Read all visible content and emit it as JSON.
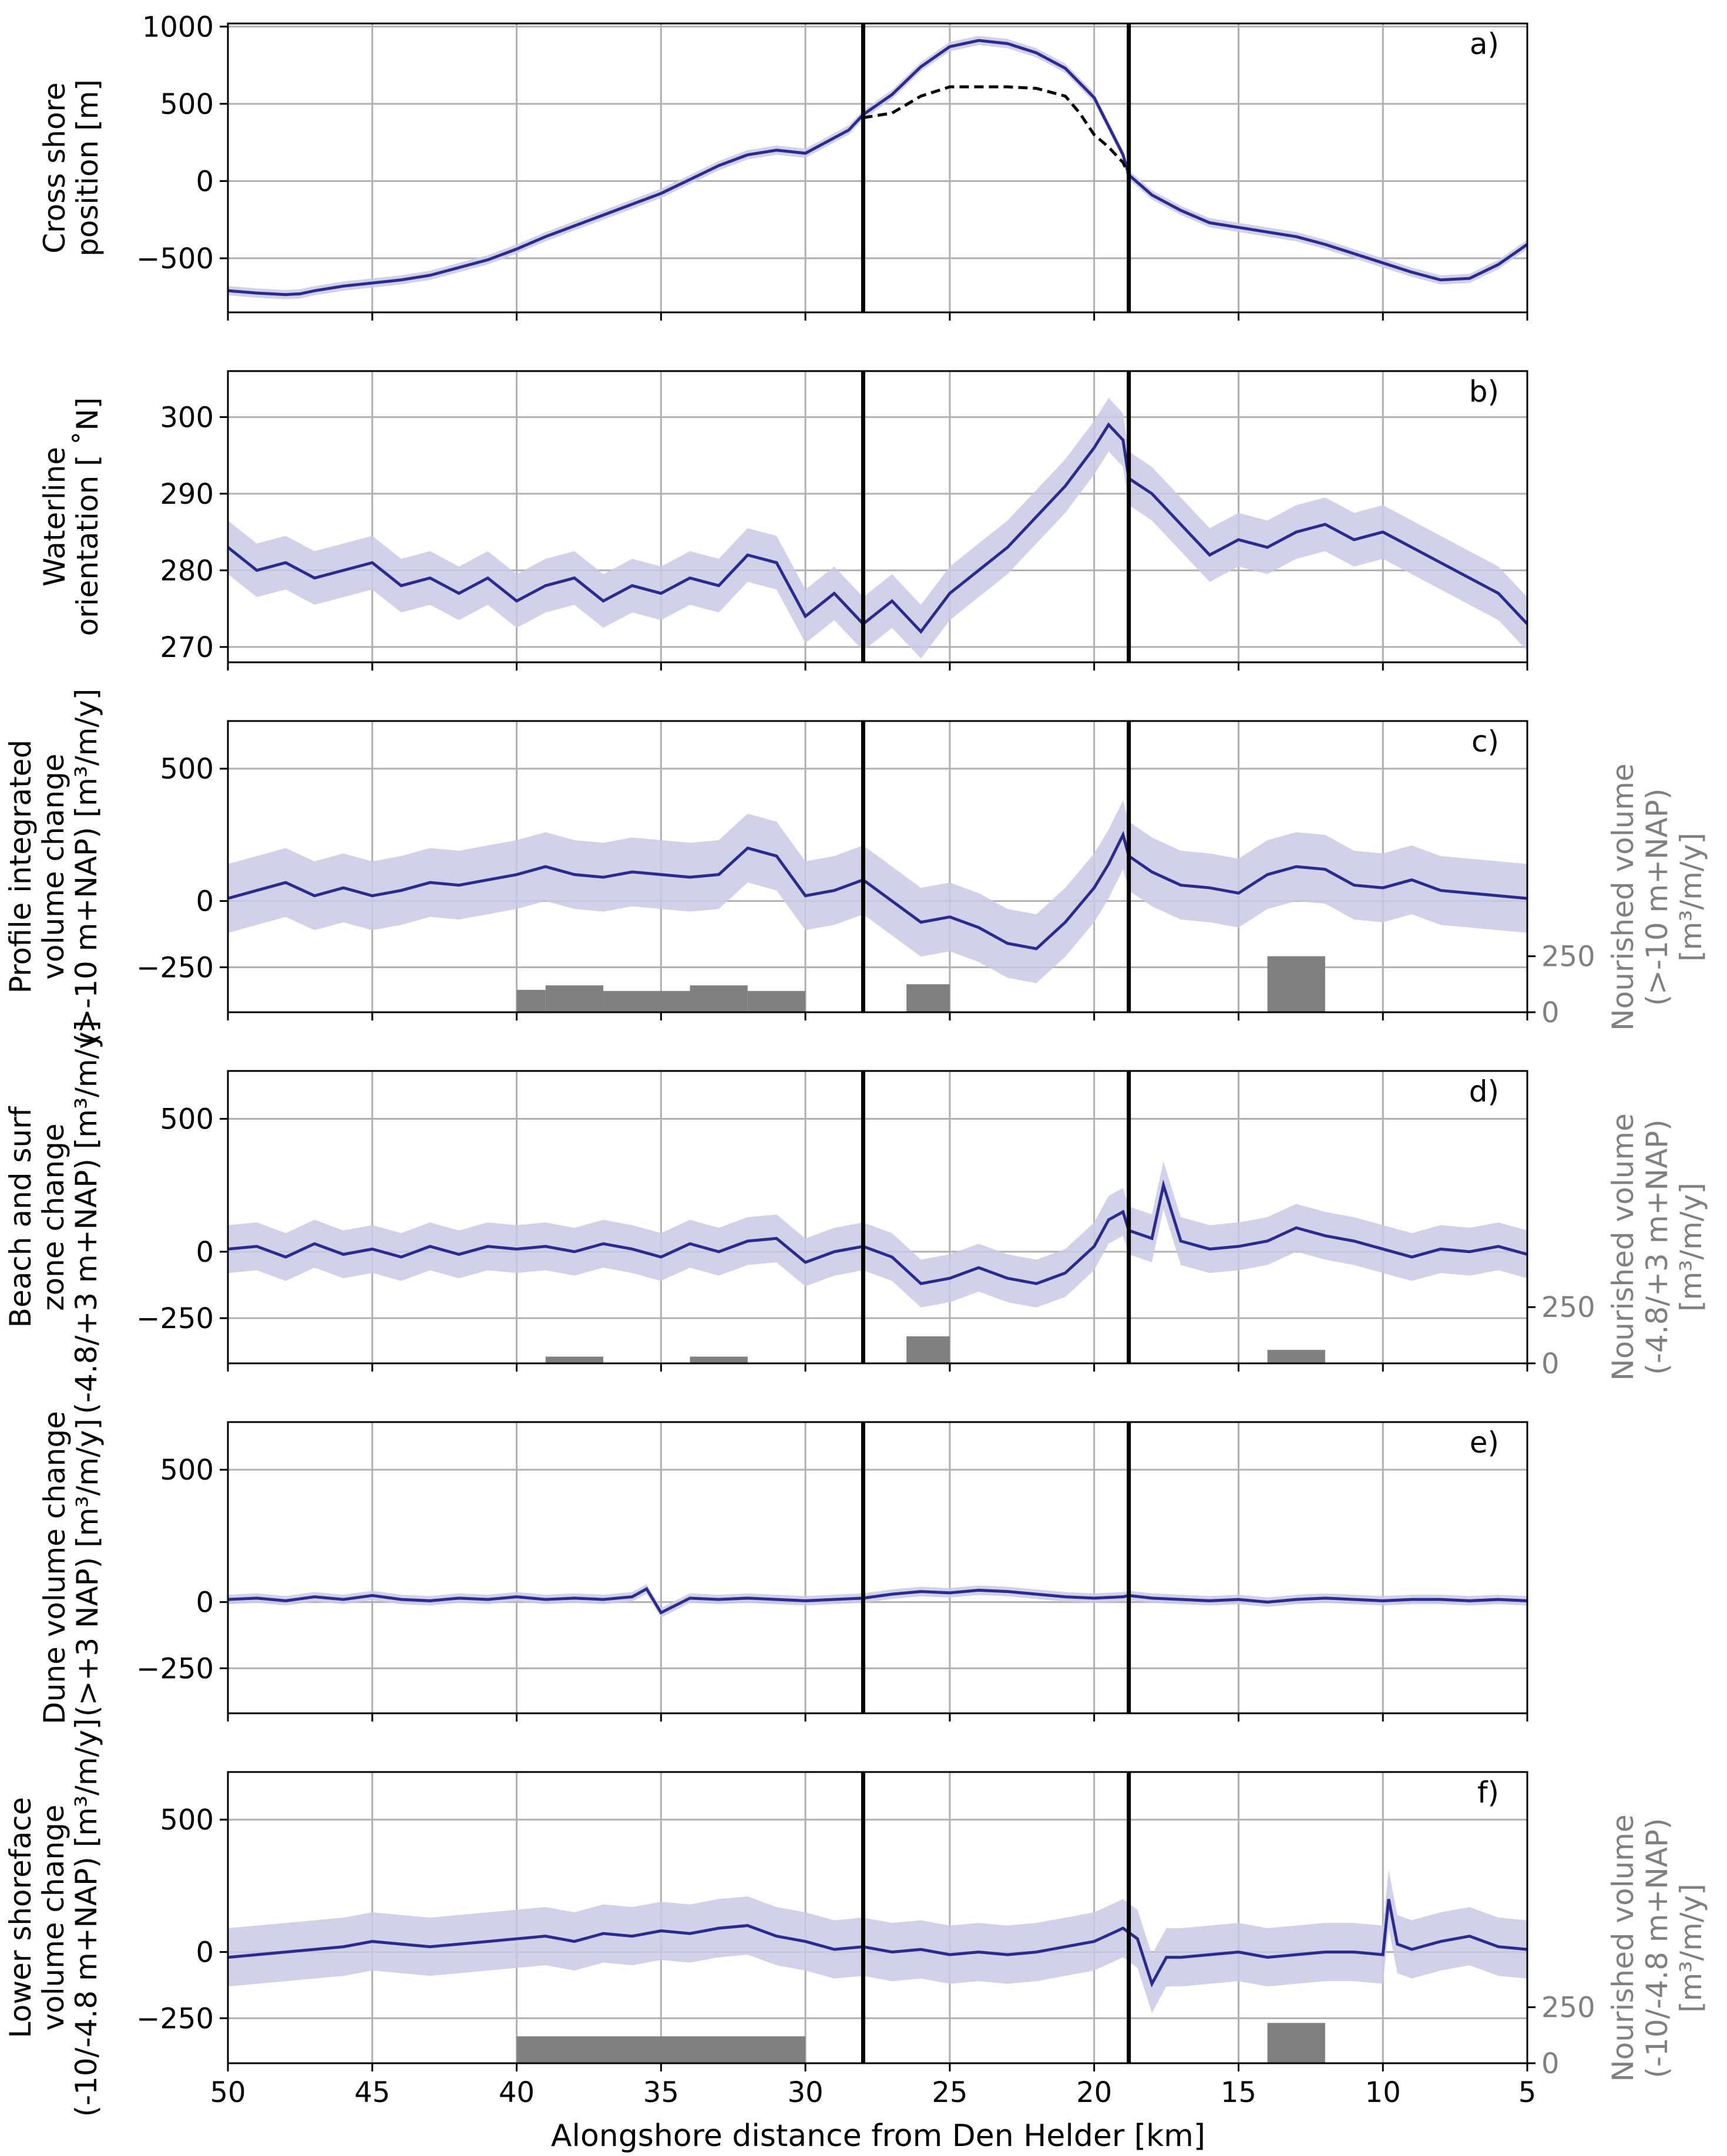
{
  "figure": {
    "xlabel": "Alongshore distance from Den Helder [km]",
    "x_ticks": [
      50,
      45,
      40,
      35,
      30,
      25,
      20,
      15,
      10,
      5
    ],
    "xlim": [
      50,
      5
    ],
    "section_boundaries_km": [
      28,
      18.8
    ],
    "colors": {
      "line": "#2b2b8f",
      "band": "#c9cae6",
      "bar": "#808080",
      "grid": "#b0b0b0",
      "right_axis_text": "#808080"
    }
  },
  "chart_data": [
    {
      "panel": "a)",
      "type": "line",
      "ylabel": [
        "Cross shore",
        "position [m]"
      ],
      "ylim": [
        -850,
        1020
      ],
      "yticks": [
        -500,
        0,
        500,
        1000
      ],
      "band_width": 30,
      "series": [
        {
          "name": "waterline position",
          "x": [
            50,
            49,
            48,
            47.5,
            47,
            46,
            45,
            44,
            43,
            42,
            41,
            40,
            39,
            38,
            37,
            36,
            35,
            34,
            33,
            32,
            31,
            30,
            29,
            28.5,
            28,
            27,
            26,
            25,
            24,
            23,
            22,
            21,
            20,
            19,
            18.8,
            18,
            17,
            16,
            15,
            14,
            13,
            12,
            11,
            10,
            9,
            8,
            7,
            6,
            5
          ],
          "y": [
            -710,
            -725,
            -735,
            -730,
            -710,
            -680,
            -660,
            -640,
            -610,
            -560,
            -510,
            -440,
            -360,
            -290,
            -220,
            -150,
            -80,
            10,
            100,
            170,
            200,
            180,
            280,
            330,
            430,
            560,
            740,
            870,
            910,
            890,
            830,
            730,
            540,
            170,
            40,
            -90,
            -190,
            -270,
            -300,
            -330,
            -360,
            -410,
            -470,
            -530,
            -590,
            -640,
            -630,
            -540,
            -410
          ]
        },
        {
          "name": "reference line (dashed)",
          "x": [
            28,
            27,
            26,
            25,
            24,
            23,
            22,
            21,
            20.5,
            20,
            19.5,
            19,
            18.8
          ],
          "y": [
            410,
            440,
            550,
            610,
            610,
            610,
            600,
            550,
            440,
            300,
            220,
            120,
            40
          ]
        }
      ]
    },
    {
      "panel": "b)",
      "type": "line",
      "ylabel": [
        "Waterline",
        "orientation [ ˚N]"
      ],
      "ylim": [
        268,
        306
      ],
      "yticks": [
        270,
        280,
        290,
        300
      ],
      "band_width": 3.5,
      "series": [
        {
          "name": "orientation",
          "x": [
            50,
            49,
            48,
            47,
            46,
            45,
            44,
            43,
            42,
            41,
            40,
            39,
            38,
            37,
            36,
            35,
            34,
            33,
            32,
            31,
            30,
            29,
            28.5,
            28,
            27,
            26,
            25,
            24,
            23,
            22,
            21,
            20,
            19.5,
            19,
            18.8,
            18,
            17,
            16,
            15,
            14,
            13,
            12,
            11,
            10,
            9,
            8,
            7,
            6,
            5
          ],
          "y": [
            283,
            280,
            281,
            279,
            280,
            281,
            278,
            279,
            277,
            279,
            276,
            278,
            279,
            276,
            278,
            277,
            279,
            278,
            282,
            281,
            274,
            277,
            275,
            273,
            276,
            272,
            277,
            280,
            283,
            287,
            291,
            296,
            299,
            297,
            292,
            290,
            286,
            282,
            284,
            283,
            285,
            286,
            284,
            285,
            283,
            281,
            279,
            277,
            273
          ]
        }
      ]
    },
    {
      "panel": "c)",
      "type": "line+bar",
      "ylabel": [
        "Profile integrated",
        "volume change",
        "(>-10 m+NAP) [m³/m/y]"
      ],
      "ylim": [
        -420,
        680
      ],
      "yticks": [
        -250,
        0,
        500
      ],
      "band_width": 130,
      "right_axis": {
        "label": [
          "Nourished volume",
          "(>-10 m+NAP)",
          "[m³/m/y]"
        ],
        "ticks": [
          0,
          250
        ],
        "ylim": [
          0,
          1300
        ]
      },
      "series": [
        {
          "name": "volume change",
          "x": [
            50,
            49,
            48,
            47,
            46,
            45,
            44,
            43,
            42,
            41,
            40,
            39,
            38,
            37,
            36,
            35,
            34,
            33,
            32,
            31,
            30,
            29,
            28,
            27,
            26,
            25,
            24,
            23,
            22,
            21,
            20,
            19.5,
            19,
            18.8,
            18,
            17,
            16,
            15,
            14,
            13,
            12,
            11,
            10,
            9,
            8,
            7,
            6,
            5
          ],
          "y": [
            10,
            40,
            70,
            20,
            50,
            20,
            40,
            70,
            60,
            80,
            100,
            130,
            100,
            90,
            110,
            100,
            90,
            100,
            200,
            170,
            20,
            40,
            80,
            0,
            -80,
            -60,
            -100,
            -160,
            -180,
            -80,
            50,
            140,
            250,
            170,
            110,
            60,
            50,
            30,
            100,
            130,
            120,
            60,
            50,
            80,
            40,
            30,
            20,
            10
          ]
        }
      ],
      "nourishment_bars": [
        {
          "x0": 40,
          "x1": 39,
          "value": 100
        },
        {
          "x0": 39,
          "x1": 37,
          "value": 120
        },
        {
          "x0": 37,
          "x1": 34,
          "value": 95
        },
        {
          "x0": 34,
          "x1": 32,
          "value": 120
        },
        {
          "x0": 32,
          "x1": 30,
          "value": 95
        },
        {
          "x0": 26.5,
          "x1": 25,
          "value": 125
        },
        {
          "x0": 14,
          "x1": 12,
          "value": 250
        }
      ]
    },
    {
      "panel": "d)",
      "type": "line+bar",
      "ylabel": [
        "Beach and surf",
        "zone change",
        "(-4.8/+3 m+NAP) [m³/m/y]"
      ],
      "ylim": [
        -420,
        680
      ],
      "yticks": [
        -250,
        0,
        500
      ],
      "band_width": 90,
      "right_axis": {
        "label": [
          "Nourished volume",
          "(-4.8/+3 m+NAP)",
          "[m³/m/y]"
        ],
        "ticks": [
          0,
          250
        ],
        "ylim": [
          0,
          1300
        ]
      },
      "series": [
        {
          "name": "volume change",
          "x": [
            50,
            49,
            48,
            47,
            46,
            45,
            44,
            43,
            42,
            41,
            40,
            39,
            38,
            37,
            36,
            35,
            34,
            33,
            32,
            31,
            30,
            29,
            28,
            27,
            26,
            25,
            24,
            23,
            22,
            21,
            20,
            19.5,
            19,
            18.8,
            18,
            17.6,
            17,
            16,
            15,
            14,
            13,
            12,
            11,
            10,
            9,
            8,
            7,
            6,
            5
          ],
          "y": [
            10,
            20,
            -20,
            30,
            -10,
            10,
            -20,
            20,
            -10,
            20,
            10,
            20,
            0,
            30,
            10,
            -20,
            30,
            0,
            40,
            50,
            -40,
            0,
            20,
            -20,
            -120,
            -100,
            -60,
            -100,
            -120,
            -80,
            20,
            120,
            150,
            80,
            50,
            250,
            40,
            10,
            20,
            40,
            90,
            60,
            40,
            10,
            -20,
            10,
            0,
            20,
            -10
          ]
        }
      ],
      "nourishment_bars": [
        {
          "x0": 39,
          "x1": 37,
          "value": 30
        },
        {
          "x0": 34,
          "x1": 32,
          "value": 30
        },
        {
          "x0": 26.5,
          "x1": 25,
          "value": 120
        },
        {
          "x0": 14,
          "x1": 12,
          "value": 60
        }
      ]
    },
    {
      "panel": "e)",
      "type": "line",
      "ylabel": [
        "Dune volume change",
        "(>+3 NAP) [m³/m/y]"
      ],
      "ylim": [
        -420,
        680
      ],
      "yticks": [
        -250,
        0,
        500
      ],
      "band_width": 18,
      "series": [
        {
          "name": "volume change",
          "x": [
            50,
            49,
            48,
            47,
            46,
            45,
            44,
            43,
            42,
            41,
            40,
            39,
            38,
            37,
            36,
            35.5,
            35,
            34,
            33,
            32,
            31,
            30,
            29,
            28,
            27,
            26,
            25,
            24,
            23,
            22,
            21,
            20,
            19,
            18.8,
            18,
            17,
            16,
            15,
            14,
            13,
            12,
            11,
            10,
            9,
            8,
            7,
            6,
            5
          ],
          "y": [
            10,
            15,
            5,
            20,
            10,
            25,
            10,
            5,
            15,
            10,
            20,
            10,
            15,
            10,
            20,
            50,
            -40,
            15,
            10,
            15,
            10,
            5,
            10,
            15,
            30,
            40,
            35,
            45,
            40,
            30,
            20,
            15,
            20,
            25,
            15,
            10,
            5,
            10,
            0,
            10,
            15,
            10,
            5,
            10,
            10,
            5,
            10,
            5
          ]
        }
      ]
    },
    {
      "panel": "f)",
      "type": "line+bar",
      "ylabel": [
        "Lower shoreface",
        "volume change",
        "(-10/-4.8 m+NAP) [m³/m/y]"
      ],
      "ylim": [
        -420,
        680
      ],
      "yticks": [
        -250,
        0,
        500
      ],
      "band_width": 110,
      "right_axis": {
        "label": [
          "Nourished volume",
          "(-10/-4.8 m+NAP)",
          "[m³/m/y]"
        ],
        "ticks": [
          0,
          250
        ],
        "ylim": [
          0,
          1300
        ]
      },
      "series": [
        {
          "name": "volume change",
          "x": [
            50,
            49,
            48,
            47,
            46,
            45,
            44,
            43,
            42,
            41,
            40,
            39,
            38,
            37,
            36,
            35,
            34,
            33,
            32,
            31,
            30,
            29,
            28,
            27,
            26,
            25,
            24,
            23,
            22,
            21,
            20,
            19,
            18.5,
            18,
            17.5,
            17,
            16,
            15,
            14,
            13,
            12,
            11,
            10,
            9.8,
            9.5,
            9,
            8,
            7,
            6,
            5
          ],
          "y": [
            -20,
            -10,
            0,
            10,
            20,
            40,
            30,
            20,
            30,
            40,
            50,
            60,
            40,
            70,
            60,
            80,
            70,
            90,
            100,
            60,
            40,
            10,
            20,
            0,
            10,
            -10,
            0,
            -10,
            0,
            20,
            40,
            90,
            50,
            -120,
            -20,
            -20,
            -10,
            0,
            -20,
            -10,
            0,
            0,
            -10,
            200,
            30,
            10,
            40,
            60,
            20,
            10
          ]
        }
      ],
      "nourishment_bars": [
        {
          "x0": 40,
          "x1": 30,
          "value": 120
        },
        {
          "x0": 14,
          "x1": 12,
          "value": 180
        }
      ]
    }
  ],
  "panel_labels": [
    "a)",
    "b)",
    "c)",
    "d)",
    "e)",
    "f)"
  ]
}
